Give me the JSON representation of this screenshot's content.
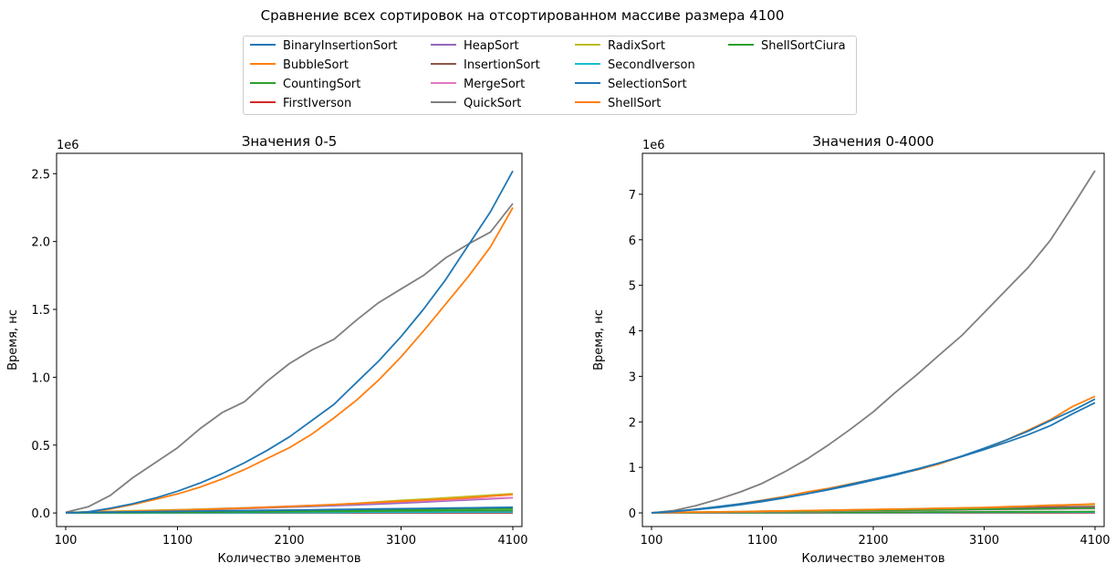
{
  "suptitle": "Сравнение всех сортировок на отсортированном массиве размера 4100",
  "legend_items": [
    {
      "label": "BinaryInsertionSort",
      "color": "#1f77b4"
    },
    {
      "label": "BubbleSort",
      "color": "#ff7f0e"
    },
    {
      "label": "CountingSort",
      "color": "#2ca02c"
    },
    {
      "label": "FirstIverson",
      "color": "#d62728"
    },
    {
      "label": "HeapSort",
      "color": "#9467bd"
    },
    {
      "label": "InsertionSort",
      "color": "#8c564b"
    },
    {
      "label": "MergeSort",
      "color": "#e377c2"
    },
    {
      "label": "QuickSort",
      "color": "#7f7f7f"
    },
    {
      "label": "RadixSort",
      "color": "#bcbd22"
    },
    {
      "label": "SecondIverson",
      "color": "#17becf"
    },
    {
      "label": "SelectionSort",
      "color": "#1f77b4"
    },
    {
      "label": "ShellSort",
      "color": "#ff7f0e"
    },
    {
      "label": "ShellSortCiura",
      "color": "#2ca02c"
    }
  ],
  "chart_data": [
    {
      "type": "line",
      "title": "Значения 0-5",
      "xlabel": "Количество элементов",
      "ylabel": "Время, нс",
      "y_offset_text": "1e6",
      "xlim": [
        100,
        4100
      ],
      "ylim": [
        -0.1,
        2.65
      ],
      "xticks": [
        100,
        1100,
        2100,
        3100,
        4100
      ],
      "yticks": [
        0.0,
        0.5,
        1.0,
        1.5,
        2.0,
        2.5
      ],
      "ytick_labels": [
        "0.0",
        "0.5",
        "1.0",
        "1.5",
        "2.0",
        "2.5"
      ],
      "grid": false,
      "x": [
        100,
        300,
        500,
        700,
        900,
        1100,
        1300,
        1500,
        1700,
        1900,
        2100,
        2300,
        2500,
        2700,
        2900,
        3100,
        3300,
        3500,
        3700,
        3900,
        4100
      ],
      "series": [
        {
          "name": "FirstIverson",
          "color": "#d62728",
          "values": [
            0.0,
            0.0,
            0.0,
            0.0,
            0.0,
            0.0,
            0.0,
            0.0,
            0.0,
            0.0,
            0.0,
            0.0,
            0.0,
            0.0,
            0.0,
            0.0,
            0.0,
            0.0,
            0.0,
            0.0,
            0.0
          ]
        },
        {
          "name": "InsertionSort",
          "color": "#8c564b",
          "values": [
            0.0,
            0.001,
            0.001,
            0.002,
            0.002,
            0.003,
            0.003,
            0.004,
            0.004,
            0.005,
            0.005,
            0.006,
            0.006,
            0.007,
            0.007,
            0.008,
            0.008,
            0.009,
            0.009,
            0.01,
            0.01
          ]
        },
        {
          "name": "SecondIverson",
          "color": "#17becf",
          "values": [
            0.0,
            0.001,
            0.001,
            0.001,
            0.001,
            0.002,
            0.002,
            0.002,
            0.002,
            0.003,
            0.003,
            0.003,
            0.003,
            0.004,
            0.004,
            0.004,
            0.004,
            0.005,
            0.005,
            0.005,
            0.005
          ]
        },
        {
          "name": "CountingSort",
          "color": "#2ca02c",
          "values": [
            0.0,
            0.001,
            0.002,
            0.003,
            0.004,
            0.005,
            0.006,
            0.007,
            0.008,
            0.009,
            0.01,
            0.011,
            0.012,
            0.013,
            0.014,
            0.015,
            0.016,
            0.017,
            0.018,
            0.019,
            0.02
          ]
        },
        {
          "name": "ShellSortCiura",
          "color": "#2ca02c",
          "values": [
            0.001,
            0.003,
            0.004,
            0.006,
            0.008,
            0.009,
            0.011,
            0.012,
            0.014,
            0.015,
            0.017,
            0.019,
            0.02,
            0.022,
            0.024,
            0.025,
            0.027,
            0.028,
            0.03,
            0.032,
            0.033
          ]
        },
        {
          "name": "HeapSort",
          "color": "#9467bd",
          "values": [
            0.002,
            0.005,
            0.008,
            0.012,
            0.016,
            0.02,
            0.024,
            0.028,
            0.033,
            0.038,
            0.043,
            0.048,
            0.054,
            0.06,
            0.066,
            0.072,
            0.08,
            0.088,
            0.096,
            0.104,
            0.112
          ]
        },
        {
          "name": "MergeSort",
          "color": "#e377c2",
          "values": [
            0.003,
            0.007,
            0.011,
            0.015,
            0.019,
            0.023,
            0.028,
            0.033,
            0.038,
            0.043,
            0.049,
            0.055,
            0.061,
            0.068,
            0.075,
            0.082,
            0.088,
            0.095,
            0.103,
            0.108,
            0.113
          ]
        },
        {
          "name": "RadixSort",
          "color": "#bcbd22",
          "values": [
            0.003,
            0.008,
            0.012,
            0.016,
            0.02,
            0.024,
            0.028,
            0.032,
            0.037,
            0.042,
            0.047,
            0.054,
            0.062,
            0.071,
            0.082,
            0.093,
            0.102,
            0.112,
            0.122,
            0.132,
            0.142
          ]
        },
        {
          "name": "QuickSort",
          "color": "#7f7f7f",
          "values": [
            0.005,
            0.045,
            0.13,
            0.26,
            0.37,
            0.48,
            0.62,
            0.74,
            0.82,
            0.97,
            1.1,
            1.2,
            1.28,
            1.42,
            1.55,
            1.65,
            1.75,
            1.88,
            1.98,
            2.07,
            2.28
          ]
        },
        {
          "name": "BubbleSort",
          "color": "#ff7f0e",
          "values": [
            0.0,
            0.008,
            0.03,
            0.062,
            0.1,
            0.14,
            0.19,
            0.25,
            0.32,
            0.4,
            0.48,
            0.58,
            0.7,
            0.83,
            0.98,
            1.15,
            1.34,
            1.54,
            1.74,
            1.96,
            2.25
          ]
        },
        {
          "name": "ShellSort",
          "color": "#ff7f0e",
          "values": [
            0.002,
            0.005,
            0.009,
            0.012,
            0.016,
            0.02,
            0.025,
            0.03,
            0.036,
            0.042,
            0.048,
            0.055,
            0.062,
            0.07,
            0.078,
            0.086,
            0.094,
            0.102,
            0.112,
            0.124,
            0.135
          ]
        },
        {
          "name": "BinaryInsertionSort",
          "color": "#1f77b4",
          "values": [
            0.0,
            0.008,
            0.035,
            0.068,
            0.11,
            0.16,
            0.22,
            0.29,
            0.37,
            0.46,
            0.56,
            0.68,
            0.8,
            0.96,
            1.12,
            1.3,
            1.5,
            1.72,
            1.97,
            2.22,
            2.52
          ]
        },
        {
          "name": "SelectionSort",
          "color": "#1f77b4",
          "values": [
            0.002,
            0.004,
            0.006,
            0.008,
            0.01,
            0.012,
            0.014,
            0.016,
            0.018,
            0.02,
            0.022,
            0.024,
            0.026,
            0.028,
            0.03,
            0.032,
            0.034,
            0.036,
            0.038,
            0.04,
            0.042
          ]
        }
      ]
    },
    {
      "type": "line",
      "title": "Значения 0-4000",
      "xlabel": "Количество элементов",
      "ylabel": "Время, нс",
      "y_offset_text": "1e6",
      "xlim": [
        100,
        4100
      ],
      "ylim": [
        -0.3,
        7.9
      ],
      "xticks": [
        100,
        1100,
        2100,
        3100,
        4100
      ],
      "yticks": [
        0,
        1,
        2,
        3,
        4,
        5,
        6,
        7
      ],
      "ytick_labels": [
        "0",
        "1",
        "2",
        "3",
        "4",
        "5",
        "6",
        "7"
      ],
      "grid": false,
      "x": [
        100,
        300,
        500,
        700,
        900,
        1100,
        1300,
        1500,
        1700,
        1900,
        2100,
        2300,
        2500,
        2700,
        2900,
        3100,
        3300,
        3500,
        3700,
        3900,
        4100
      ],
      "series": [
        {
          "name": "FirstIverson",
          "color": "#d62728",
          "values": [
            0.0,
            0.0,
            0.0,
            0.0,
            0.0,
            0.0,
            0.0,
            0.0,
            0.0,
            0.0,
            0.0,
            0.0,
            0.0,
            0.0,
            0.0,
            0.0,
            0.0,
            0.0,
            0.0,
            0.0,
            0.0
          ]
        },
        {
          "name": "SecondIverson",
          "color": "#17becf",
          "values": [
            0.0,
            0.001,
            0.002,
            0.002,
            0.003,
            0.004,
            0.004,
            0.005,
            0.006,
            0.006,
            0.007,
            0.008,
            0.008,
            0.009,
            0.01,
            0.01,
            0.011,
            0.012,
            0.012,
            0.013,
            0.014
          ]
        },
        {
          "name": "CountingSort",
          "color": "#2ca02c",
          "values": [
            0.0,
            0.002,
            0.003,
            0.005,
            0.006,
            0.008,
            0.009,
            0.011,
            0.012,
            0.014,
            0.015,
            0.017,
            0.018,
            0.02,
            0.021,
            0.023,
            0.024,
            0.026,
            0.027,
            0.029,
            0.03
          ]
        },
        {
          "name": "InsertionSort",
          "color": "#8c564b",
          "values": [
            0.002,
            0.006,
            0.01,
            0.015,
            0.02,
            0.026,
            0.032,
            0.038,
            0.045,
            0.052,
            0.06,
            0.068,
            0.076,
            0.085,
            0.094,
            0.103,
            0.112,
            0.12,
            0.128,
            0.135,
            0.14
          ]
        },
        {
          "name": "HeapSort",
          "color": "#9467bd",
          "values": [
            0.002,
            0.005,
            0.009,
            0.013,
            0.017,
            0.022,
            0.027,
            0.032,
            0.038,
            0.044,
            0.05,
            0.056,
            0.062,
            0.068,
            0.074,
            0.08,
            0.086,
            0.092,
            0.098,
            0.104,
            0.11
          ]
        },
        {
          "name": "MergeSort",
          "color": "#e377c2",
          "values": [
            0.003,
            0.006,
            0.01,
            0.014,
            0.018,
            0.022,
            0.026,
            0.03,
            0.035,
            0.04,
            0.045,
            0.05,
            0.055,
            0.06,
            0.065,
            0.07,
            0.075,
            0.08,
            0.085,
            0.09,
            0.095
          ]
        },
        {
          "name": "ShellSortCiura",
          "color": "#2ca02c",
          "values": [
            0.003,
            0.008,
            0.013,
            0.018,
            0.023,
            0.028,
            0.033,
            0.038,
            0.043,
            0.048,
            0.053,
            0.058,
            0.063,
            0.068,
            0.073,
            0.078,
            0.083,
            0.088,
            0.093,
            0.098,
            0.103
          ]
        },
        {
          "name": "RadixSort",
          "color": "#bcbd22",
          "values": [
            0.004,
            0.01,
            0.016,
            0.022,
            0.028,
            0.035,
            0.042,
            0.049,
            0.056,
            0.064,
            0.072,
            0.08,
            0.088,
            0.096,
            0.105,
            0.115,
            0.13,
            0.15,
            0.17,
            0.18,
            0.185
          ]
        },
        {
          "name": "ShellSort",
          "color": "#ff7f0e",
          "values": [
            0.004,
            0.01,
            0.016,
            0.022,
            0.029,
            0.036,
            0.043,
            0.05,
            0.058,
            0.066,
            0.074,
            0.082,
            0.09,
            0.1,
            0.11,
            0.12,
            0.135,
            0.15,
            0.165,
            0.18,
            0.2
          ]
        },
        {
          "name": "QuickSort",
          "color": "#7f7f7f",
          "values": [
            0.0,
            0.05,
            0.16,
            0.3,
            0.46,
            0.65,
            0.9,
            1.18,
            1.5,
            1.85,
            2.22,
            2.65,
            3.05,
            3.48,
            3.9,
            4.4,
            4.9,
            5.4,
            6.0,
            6.75,
            7.52
          ]
        },
        {
          "name": "BubbleSort",
          "color": "#ff7f0e",
          "values": [
            0.0,
            0.03,
            0.08,
            0.13,
            0.2,
            0.28,
            0.36,
            0.46,
            0.54,
            0.64,
            0.74,
            0.84,
            0.95,
            1.08,
            1.24,
            1.4,
            1.6,
            1.82,
            2.05,
            2.34,
            2.56
          ]
        },
        {
          "name": "BinaryInsertionSort",
          "color": "#1f77b4",
          "values": [
            0.0,
            0.03,
            0.07,
            0.12,
            0.18,
            0.25,
            0.33,
            0.42,
            0.52,
            0.63,
            0.74,
            0.85,
            0.97,
            1.1,
            1.24,
            1.39,
            1.55,
            1.72,
            1.92,
            2.18,
            2.42
          ]
        },
        {
          "name": "SelectionSort",
          "color": "#1f77b4",
          "values": [
            0.0,
            0.03,
            0.08,
            0.14,
            0.2,
            0.27,
            0.34,
            0.42,
            0.51,
            0.61,
            0.72,
            0.83,
            0.96,
            1.1,
            1.25,
            1.42,
            1.6,
            1.8,
            2.03,
            2.25,
            2.5
          ]
        }
      ]
    }
  ]
}
